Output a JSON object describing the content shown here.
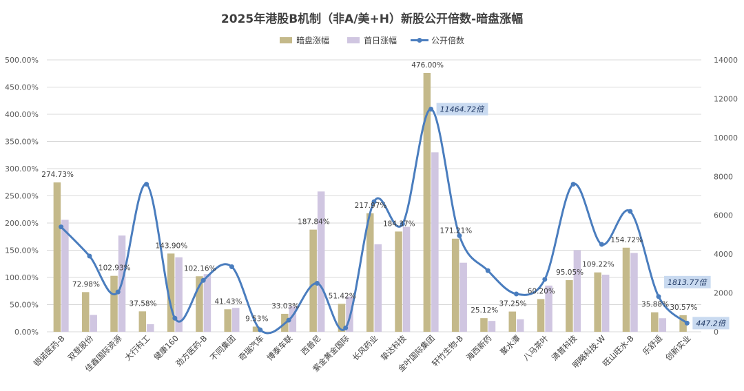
{
  "chart_data": {
    "type": "bar",
    "title": "2025年港股B机制（非A/美+H）新股公开倍数-暗盘涨幅",
    "categories": [
      "银诺医药-B",
      "双登股份",
      "佳鑫国际资源",
      "大行科工",
      "健康160",
      "劲方医药-B",
      "不同集团",
      "奇瑞汽车",
      "博泰车联",
      "西普尼",
      "紫金黄金国际",
      "长风药业",
      "挚达科技",
      "金叶国际集团",
      "轩竹生物-B",
      "海西新药",
      "聚水潭",
      "八马茶叶",
      "滴普科技",
      "明略科技-W",
      "旺山旺水-B",
      "乐舒适",
      "创新实业"
    ],
    "series": [
      {
        "name": "暗盘涨幅",
        "axis": "left",
        "kind": "bar",
        "color": "#c4b98a",
        "values": [
          274.73,
          72.98,
          102.93,
          37.58,
          143.9,
          102.16,
          41.43,
          9.53,
          33.03,
          187.84,
          51.42,
          217.97,
          184.37,
          476.0,
          171.21,
          25.12,
          37.25,
          60.2,
          95.05,
          109.22,
          154.72,
          35.88,
          30.57
        ],
        "labels": [
          "274.73%",
          "72.98%",
          "102.93%",
          "37.58%",
          "143.90%",
          "102.16%",
          "41.43%",
          "9.53%",
          "33.03%",
          "187.84%",
          "51.42%",
          "217.97%",
          "184.37%",
          "476.00%",
          "171.21%",
          "25.12%",
          "37.25%",
          "60.20%",
          "95.05%",
          "109.22%",
          "154.72%",
          "35.88%",
          "30.57%"
        ]
      },
      {
        "name": "首日涨幅",
        "axis": "left",
        "kind": "bar",
        "color": "#d0c6e1",
        "values": [
          206,
          31,
          177,
          14,
          137,
          106,
          44,
          0,
          47,
          258,
          65,
          161,
          193,
          330,
          127,
          20,
          23,
          85,
          150,
          105,
          145,
          25,
          0
        ]
      },
      {
        "name": "公开倍数",
        "axis": "right",
        "kind": "line",
        "color": "#4a7dbe",
        "values": [
          5400,
          3900,
          2050,
          7600,
          700,
          2650,
          3350,
          100,
          600,
          2500,
          200,
          6700,
          5550,
          11464.72,
          4950,
          3150,
          1950,
          2700,
          7600,
          4500,
          6200,
          1813.77,
          447.2
        ]
      }
    ],
    "callouts": [
      {
        "index": 13,
        "text": "11464.72倍"
      },
      {
        "index": 21,
        "text": "1813.77倍"
      },
      {
        "index": 22,
        "text": "447.2倍"
      }
    ],
    "y_left": {
      "min": 0,
      "max": 500,
      "step": 50,
      "ticks": [
        "0.00%",
        "50.00%",
        "100.00%",
        "150.00%",
        "200.00%",
        "250.00%",
        "300.00%",
        "350.00%",
        "400.00%",
        "450.00%",
        "500.00%"
      ]
    },
    "y_right": {
      "min": 0,
      "max": 14000,
      "step": 2000,
      "ticks": [
        "0",
        "2000",
        "4000",
        "6000",
        "8000",
        "10000",
        "12000",
        "14000"
      ]
    },
    "grid": true,
    "legend_position": "top"
  },
  "colors": {
    "bar1": "#c4b98a",
    "bar2": "#d0c6e1",
    "line": "#4a7dbe",
    "callout_bg": "#c9daf0",
    "grid": "#d9d9d9"
  }
}
